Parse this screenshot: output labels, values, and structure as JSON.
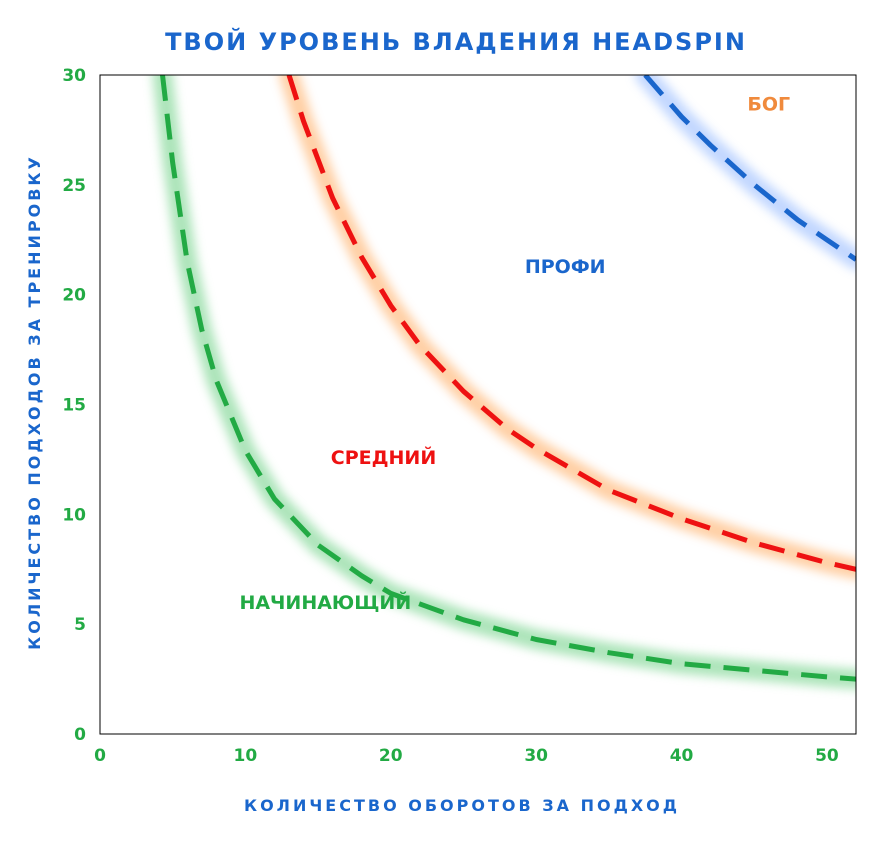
{
  "chart_data": {
    "type": "line",
    "title": "ТВОЙ УРОВЕНЬ ВЛАДЕНИЯ HEADSPIN",
    "xlabel": "КОЛИЧЕСТВО ОБОРОТОВ ЗА ПОДХОД",
    "ylabel": "КОЛИЧЕСТВО ПОДХОДОВ ЗА ТРЕНИРОВКУ",
    "xlim": [
      0,
      52
    ],
    "ylim": [
      0,
      30
    ],
    "xticks": [
      0,
      10,
      20,
      30,
      40,
      50
    ],
    "yticks": [
      0,
      5,
      10,
      15,
      20,
      25,
      30
    ],
    "grid": false,
    "series": [
      {
        "color": "#22aa44",
        "glow": "#9fe0ae",
        "x": [
          4.3,
          5,
          6,
          7,
          8,
          10,
          12,
          15,
          18,
          20,
          25,
          30,
          35,
          40,
          45,
          50,
          52
        ],
        "y": [
          30,
          26,
          21.5,
          18.4,
          16.1,
          12.9,
          10.7,
          8.6,
          7.2,
          6.4,
          5.2,
          4.3,
          3.7,
          3.2,
          2.9,
          2.6,
          2.5
        ]
      },
      {
        "color": "#ee1111",
        "glow": "#ffc896",
        "x": [
          13,
          14,
          16,
          18,
          20,
          22,
          25,
          28,
          30,
          35,
          40,
          45,
          50,
          52
        ],
        "y": [
          30,
          27.9,
          24.4,
          21.7,
          19.5,
          17.7,
          15.6,
          13.9,
          13,
          11.1,
          9.8,
          8.7,
          7.8,
          7.5
        ]
      },
      {
        "color": "#1a66cc",
        "glow": "#b8d0ff",
        "x": [
          37.5,
          40,
          42,
          45,
          48,
          50,
          52
        ],
        "y": [
          30,
          28.1,
          26.8,
          25,
          23.4,
          22.5,
          21.6
        ]
      }
    ],
    "annotations": [
      {
        "text": "НАЧИНАЮЩИЙ",
        "x": 15.5,
        "y": 6,
        "color": "#22aa44"
      },
      {
        "text": "СРЕДНИЙ",
        "x": 19.5,
        "y": 12.6,
        "color": "#ee1111"
      },
      {
        "text": "ПРОФИ",
        "x": 32,
        "y": 21.3,
        "color": "#1a66cc"
      },
      {
        "text": "БОГ",
        "x": 46,
        "y": 28.7,
        "color": "#f08a3c"
      }
    ],
    "colors": {
      "title": "#1a66cc",
      "axis_label": "#1a66cc",
      "tick": "#22aa44",
      "frame": "#000000"
    }
  }
}
